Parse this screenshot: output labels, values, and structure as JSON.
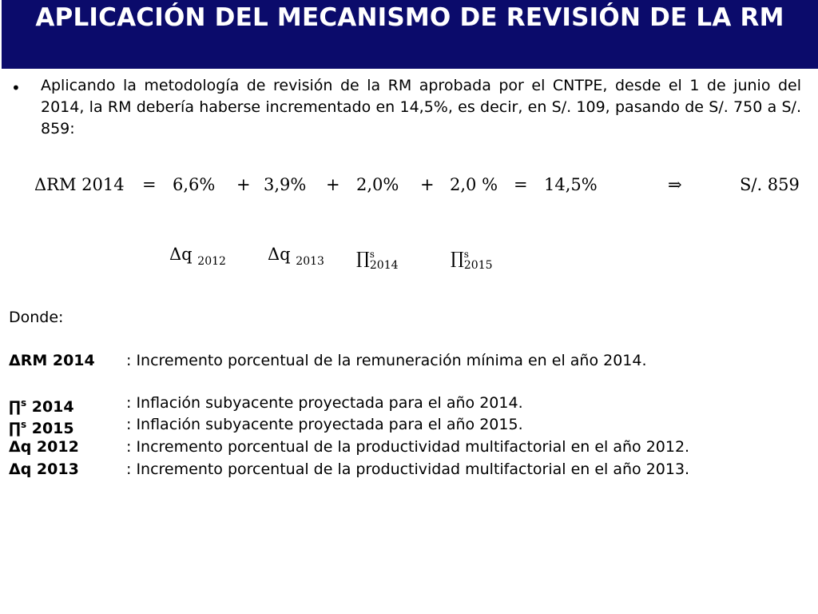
{
  "title": "APLICACIÓN DEL MECANISMO DE REVISIÓN DE LA RM",
  "bullet": "Aplicando la metodología de revisión de la RM aprobada por el CNTPE, desde el 1 de junio del 2014, la RM debería haberse incrementado en 14,5%, es decir, en S/. 109, pasando de S/. 750 a S/. 859:",
  "equation": {
    "lhs": "ΔRM  2014",
    "eq1": "=",
    "t1": "6,6%",
    "p1": "+",
    "t2": "3,9%",
    "p2": "+",
    "t3": "2,0%",
    "p3": "+",
    "t4": "2,0 %",
    "eq2": "=",
    "result": "14,5%",
    "arrow": "⇒",
    "amount": "S/. 859"
  },
  "symbols": [
    {
      "base": "Δq",
      "sup": "",
      "sub": "2012"
    },
    {
      "base": "Δq",
      "sup": "",
      "sub": "2013"
    },
    {
      "base": "∏",
      "sup": "s",
      "sub": "2014"
    },
    {
      "base": "∏",
      "sup": "s",
      "sub": "2015"
    }
  ],
  "donde": "Donde:",
  "definitions": [
    {
      "term": "ΔRM  2014",
      "sup": "",
      "desc": ": Incremento porcentual de la remuneración mínima en el año 2014."
    },
    {
      "term_base": "∏",
      "sup": "s",
      "term_rest": " 2014",
      "desc": ": Inflación subyacente proyectada para el año 2014."
    },
    {
      "term_base": "∏",
      "sup": "s",
      "term_rest": " 2015",
      "desc": ": Inflación subyacente proyectada para el año 2015."
    },
    {
      "term": "Δq 2012",
      "sup": "",
      "desc": ": Incremento porcentual de la productividad multifactorial en el año 2012."
    },
    {
      "term": "Δq 2013",
      "sup": "",
      "desc": ": Incremento porcentual de la productividad multifactorial en el año 2013."
    }
  ],
  "colors": {
    "title_bg": "#0b0b6b",
    "title_fg": "#ffffff",
    "text": "#000000"
  }
}
